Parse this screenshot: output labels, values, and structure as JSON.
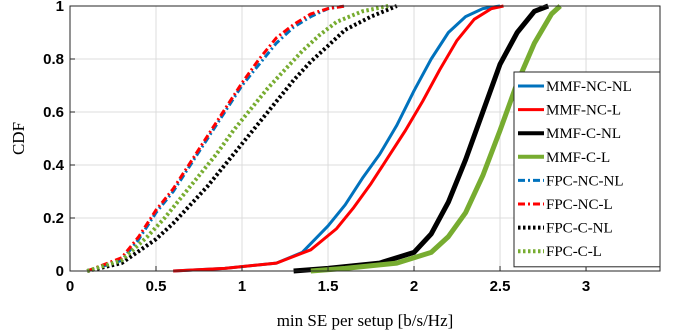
{
  "chart_data": {
    "type": "line",
    "title": "",
    "xlabel": "min SE per setup [b/s/Hz]",
    "ylabel": "CDF",
    "xlim": [
      0,
      3.43
    ],
    "ylim": [
      0,
      1
    ],
    "xticks": [
      0,
      0.5,
      1,
      1.5,
      2,
      2.5,
      3
    ],
    "xtick_labels": [
      "0",
      "0.5",
      "1",
      "1.5",
      "2",
      "2.5",
      "3"
    ],
    "yticks": [
      0,
      0.2,
      0.4,
      0.6,
      0.8,
      1
    ],
    "ytick_labels": [
      "0",
      "0.2",
      "0.4",
      "0.6",
      "0.8",
      "1"
    ],
    "grid": true,
    "legend_position": "right",
    "series": [
      {
        "name": "MMF-NC-NL",
        "color": "#0072BD",
        "style": "solid",
        "width": 3,
        "x": [
          0.6,
          0.9,
          1.2,
          1.35,
          1.5,
          1.6,
          1.7,
          1.8,
          1.9,
          2.0,
          2.1,
          2.2,
          2.3,
          2.4,
          2.5
        ],
        "y": [
          0.0,
          0.01,
          0.03,
          0.07,
          0.17,
          0.25,
          0.35,
          0.44,
          0.55,
          0.68,
          0.8,
          0.9,
          0.96,
          0.99,
          1.0
        ]
      },
      {
        "name": "MMF-NC-L",
        "color": "#FF0000",
        "style": "solid",
        "width": 3,
        "x": [
          0.6,
          0.9,
          1.2,
          1.4,
          1.55,
          1.65,
          1.75,
          1.85,
          1.95,
          2.05,
          2.15,
          2.25,
          2.35,
          2.45,
          2.52
        ],
        "y": [
          0.0,
          0.01,
          0.03,
          0.08,
          0.16,
          0.24,
          0.33,
          0.43,
          0.53,
          0.64,
          0.76,
          0.87,
          0.95,
          0.99,
          1.0
        ]
      },
      {
        "name": "MMF-C-NL",
        "color": "#000000",
        "style": "solid",
        "width": 5,
        "x": [
          1.3,
          1.5,
          1.8,
          2.0,
          2.1,
          2.2,
          2.3,
          2.4,
          2.5,
          2.6,
          2.7,
          2.78
        ],
        "y": [
          0.0,
          0.01,
          0.03,
          0.07,
          0.14,
          0.26,
          0.42,
          0.6,
          0.78,
          0.9,
          0.98,
          1.0
        ]
      },
      {
        "name": "MMF-C-L",
        "color": "#77AC30",
        "style": "solid",
        "width": 5,
        "x": [
          1.4,
          1.6,
          1.9,
          2.1,
          2.2,
          2.3,
          2.4,
          2.5,
          2.6,
          2.7,
          2.8,
          2.85
        ],
        "y": [
          0.0,
          0.01,
          0.03,
          0.07,
          0.13,
          0.22,
          0.36,
          0.53,
          0.71,
          0.86,
          0.97,
          1.0
        ]
      },
      {
        "name": "FPC-NC-NL",
        "color": "#0072BD",
        "style": "dashdot",
        "width": 3,
        "x": [
          0.1,
          0.3,
          0.4,
          0.5,
          0.6,
          0.7,
          0.8,
          0.9,
          1.0,
          1.1,
          1.2,
          1.3,
          1.4,
          1.5,
          1.6
        ],
        "y": [
          0.0,
          0.04,
          0.12,
          0.22,
          0.3,
          0.4,
          0.5,
          0.6,
          0.7,
          0.78,
          0.86,
          0.92,
          0.96,
          0.99,
          1.0
        ]
      },
      {
        "name": "FPC-NC-L",
        "color": "#FF0000",
        "style": "dashdot",
        "width": 3,
        "x": [
          0.1,
          0.3,
          0.4,
          0.5,
          0.6,
          0.7,
          0.8,
          0.9,
          1.0,
          1.1,
          1.2,
          1.3,
          1.4,
          1.5,
          1.6
        ],
        "y": [
          0.0,
          0.05,
          0.13,
          0.23,
          0.31,
          0.41,
          0.51,
          0.61,
          0.71,
          0.8,
          0.88,
          0.93,
          0.97,
          0.99,
          1.0
        ]
      },
      {
        "name": "FPC-C-NL",
        "color": "#000000",
        "style": "dotted",
        "width": 4,
        "x": [
          0.1,
          0.3,
          0.5,
          0.6,
          0.7,
          0.8,
          0.9,
          1.0,
          1.1,
          1.2,
          1.3,
          1.4,
          1.5,
          1.6,
          1.75,
          1.9
        ],
        "y": [
          0.0,
          0.03,
          0.12,
          0.18,
          0.25,
          0.32,
          0.4,
          0.48,
          0.56,
          0.64,
          0.72,
          0.79,
          0.85,
          0.91,
          0.96,
          1.0
        ]
      },
      {
        "name": "FPC-C-L",
        "color": "#77AC30",
        "style": "dotted",
        "width": 4,
        "x": [
          0.1,
          0.3,
          0.45,
          0.55,
          0.65,
          0.75,
          0.85,
          0.95,
          1.05,
          1.15,
          1.25,
          1.35,
          1.45,
          1.55,
          1.7,
          1.85
        ],
        "y": [
          0.0,
          0.04,
          0.13,
          0.2,
          0.28,
          0.36,
          0.44,
          0.53,
          0.61,
          0.69,
          0.76,
          0.83,
          0.89,
          0.94,
          0.98,
          1.0
        ]
      }
    ]
  }
}
